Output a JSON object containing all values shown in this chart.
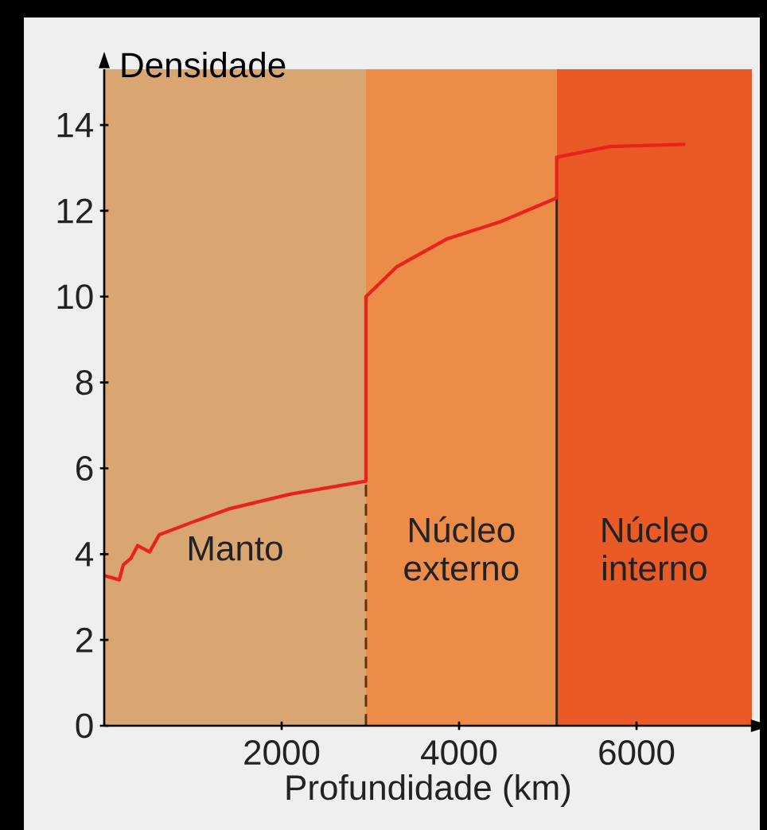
{
  "chart_data": {
    "type": "line",
    "xlabel": "Profundidade (km)",
    "ylabel": "Densidade",
    "x": [
      0,
      170,
      215,
      300,
      377,
      511,
      620,
      1000,
      1400,
      2100,
      2950,
      2950,
      3300,
      3870,
      4470,
      5100,
      5100,
      5700,
      6550
    ],
    "values": [
      3.5,
      3.4,
      3.75,
      3.9,
      4.2,
      4.05,
      4.45,
      4.75,
      5.05,
      5.4,
      5.7,
      10.0,
      10.7,
      11.35,
      11.75,
      12.3,
      13.25,
      13.5,
      13.55
    ],
    "color": "#e8231b",
    "xlim": [
      0,
      7300
    ],
    "ylim": [
      0,
      15.3
    ],
    "xticks": [
      2000,
      4000,
      6000
    ],
    "yticks": [
      0,
      2,
      4,
      6,
      8,
      10,
      12,
      14
    ],
    "bands": [
      {
        "axis": "x",
        "from": 0,
        "to": 2950,
        "label": "Manto",
        "color": "#d9a571"
      },
      {
        "axis": "x",
        "from": 2950,
        "to": 5100,
        "label": "Núcleo externo",
        "color": "#ec8c48"
      },
      {
        "axis": "x",
        "from": 5100,
        "to": 7300,
        "label": "Núcleo interno",
        "color": "#ea5a26"
      }
    ],
    "ref_lines": [
      {
        "axis": "x",
        "value": 2950,
        "line_style": "dashed",
        "color": "#5a3210"
      },
      {
        "axis": "x",
        "value": 5100,
        "line_style": "solid",
        "color": "#3a2410"
      }
    ]
  }
}
